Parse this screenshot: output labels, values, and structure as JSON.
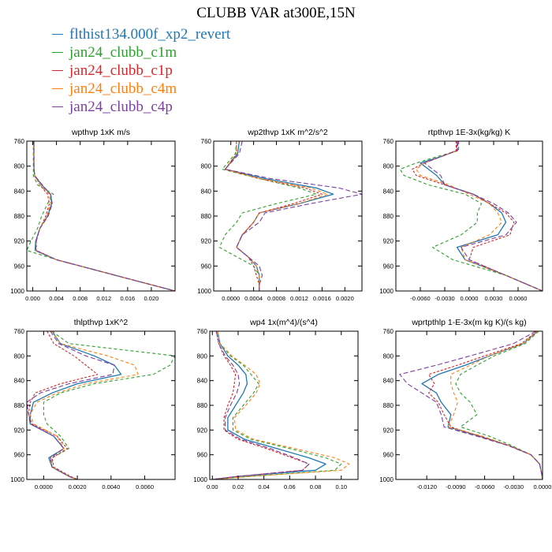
{
  "title": "CLUBB VAR at300E,15N",
  "legend": [
    {
      "name": "flthist134.000f_xp2_revert",
      "color": "#1f77b4"
    },
    {
      "name": "jan24_clubb_c1m",
      "color": "#2ca02c"
    },
    {
      "name": "jan24_clubb_c1p",
      "color": "#d62728"
    },
    {
      "name": "jan24_clubb_c4m",
      "color": "#ff7f0e"
    },
    {
      "name": "jan24_clubb_c4p",
      "color": "#7b3f9e"
    }
  ],
  "chart_data": [
    {
      "type": "line",
      "title": "wpthvp  1xK m/s",
      "xlim": [
        -0.001,
        0.024
      ],
      "xticks": [
        "0.000",
        "0.004",
        "0.008",
        "0.012",
        "0.016",
        "0.020"
      ],
      "xtick_values": [
        0,
        0.004,
        0.008,
        0.012,
        0.016,
        0.02
      ],
      "ylim": [
        760,
        1000
      ],
      "yticks": [
        760,
        800,
        840,
        880,
        920,
        960,
        1000
      ],
      "y": [
        760,
        780,
        800,
        815,
        830,
        845,
        860,
        880,
        900,
        920,
        935,
        950,
        965,
        980,
        1000
      ],
      "series": [
        {
          "values": [
            0.0002,
            0.0002,
            0.0002,
            0.0003,
            0.0015,
            0.003,
            0.0032,
            0.0025,
            0.0012,
            0.0005,
            0.0004,
            0.004,
            0.01,
            0.016,
            0.024
          ]
        },
        {
          "values": [
            0.0001,
            0.0001,
            0.0001,
            0.0001,
            0.0008,
            0.0035,
            0.0025,
            0.0015,
            0.0008,
            -0.0003,
            -0.001,
            0.004,
            0.01,
            0.016,
            0.024
          ]
        },
        {
          "values": [
            0.0002,
            0.0002,
            0.0002,
            0.0003,
            0.0012,
            0.0025,
            0.0028,
            0.0022,
            0.0012,
            0.0006,
            0.0006,
            0.004,
            0.01,
            0.016,
            0.024
          ]
        },
        {
          "values": [
            0.0002,
            0.0002,
            0.0002,
            0.0003,
            0.0012,
            0.0028,
            0.003,
            0.0024,
            0.0012,
            0.0006,
            0.0005,
            0.004,
            0.01,
            0.016,
            0.024
          ]
        },
        {
          "values": [
            0.0002,
            0.0002,
            0.0002,
            0.0003,
            0.0016,
            0.003,
            0.0033,
            0.0026,
            0.0012,
            0.0006,
            0.0005,
            0.004,
            0.01,
            0.016,
            0.024
          ]
        }
      ]
    },
    {
      "type": "line",
      "title": "wp2thvp  1xK m^2/s^2",
      "xlim": [
        -0.0003,
        0.0023
      ],
      "xticks": [
        "0.0000",
        "0.0004",
        "0.0008",
        "0.0012",
        "0.0016",
        "0.0020"
      ],
      "xtick_values": [
        0,
        0.0004,
        0.0008,
        0.0012,
        0.0016,
        0.002
      ],
      "ylim": [
        760,
        1000
      ],
      "yticks": [
        760,
        800,
        840,
        880,
        920,
        960,
        1000
      ],
      "y": [
        760,
        780,
        805,
        820,
        835,
        845,
        860,
        875,
        890,
        910,
        930,
        945,
        960,
        975,
        990,
        1000
      ],
      "series": [
        {
          "values": [
            0.00015,
            0.00012,
            -0.0001,
            0.0006,
            0.0015,
            0.0018,
            0.0012,
            0.0005,
            0.0004,
            0.0002,
            0.0001,
            0.0003,
            0.00045,
            0.0005,
            0.0005,
            0.0005
          ]
        },
        {
          "values": [
            0.0001,
            8e-05,
            -0.00015,
            0.0005,
            0.0012,
            0.0015,
            0.0008,
            0.0002,
            0.0001,
            -0.0001,
            -0.0002,
            0.0001,
            0.0004,
            0.0005,
            0.0005,
            0.0005
          ]
        },
        {
          "values": [
            0.0001,
            0.0001,
            -0.0001,
            0.0005,
            0.0013,
            0.0016,
            0.0011,
            0.0005,
            0.0004,
            0.0002,
            0.0001,
            0.0003,
            0.0004,
            0.00045,
            0.0005,
            0.0005
          ]
        },
        {
          "values": [
            0.0001,
            0.0001,
            -0.0001,
            0.0005,
            0.0014,
            0.0017,
            0.0012,
            0.0005,
            0.0004,
            0.0002,
            0.0001,
            0.0003,
            0.00045,
            0.0005,
            0.0005,
            0.0005
          ]
        },
        {
          "values": [
            0.0002,
            0.00015,
            -0.0001,
            0.0007,
            0.0019,
            0.0023,
            0.0014,
            0.0006,
            0.0005,
            0.0002,
            0.0001,
            0.0003,
            0.0005,
            0.00055,
            0.0005,
            0.0005
          ]
        }
      ]
    },
    {
      "type": "line",
      "title": "rtpthvp   1E-3x(kg/kg) K",
      "xlim": [
        -0.009,
        0.009
      ],
      "xticks": [
        "-0.0060",
        "-0.0030",
        "0.0000",
        "0.0030",
        "0.0060"
      ],
      "xtick_values": [
        -0.006,
        -0.003,
        0,
        0.003,
        0.006
      ],
      "ylim": [
        760,
        1000
      ],
      "yticks": [
        760,
        800,
        840,
        880,
        920,
        960,
        1000
      ],
      "y": [
        760,
        775,
        785,
        795,
        805,
        815,
        830,
        845,
        860,
        875,
        890,
        910,
        930,
        950,
        975,
        1000
      ],
      "series": [
        {
          "values": [
            -0.0015,
            -0.0015,
            -0.0035,
            -0.006,
            -0.005,
            -0.004,
            -0.003,
            0.0005,
            0.0025,
            0.004,
            0.0045,
            0.0035,
            -0.0015,
            -0.0005,
            0.0045,
            0.009
          ]
        },
        {
          "values": [
            -0.0013,
            -0.0013,
            -0.004,
            -0.0065,
            -0.0085,
            -0.008,
            -0.005,
            -0.0005,
            0.0015,
            0.001,
            0.001,
            -0.001,
            -0.0045,
            -0.002,
            0.0045,
            0.009
          ]
        },
        {
          "values": [
            -0.0016,
            -0.0016,
            -0.0035,
            -0.0055,
            -0.007,
            -0.0065,
            -0.003,
            0.0005,
            0.0025,
            0.0045,
            0.0055,
            0.005,
            0.0005,
            0.0,
            0.0045,
            0.009
          ]
        },
        {
          "values": [
            -0.0015,
            -0.0015,
            -0.0035,
            -0.0055,
            -0.0065,
            -0.006,
            -0.0025,
            0.0,
            0.0025,
            0.0035,
            0.004,
            0.0025,
            -0.001,
            -0.0005,
            0.0045,
            0.009
          ]
        },
        {
          "values": [
            -0.0014,
            -0.0014,
            -0.0035,
            -0.0055,
            -0.0045,
            -0.0035,
            -0.003,
            0.0005,
            0.003,
            0.0048,
            0.0058,
            0.0045,
            -0.001,
            0.0,
            0.0045,
            0.009
          ]
        }
      ]
    },
    {
      "type": "line",
      "title": "thlpthvp   1xK^2",
      "xlim": [
        -0.001,
        0.0078
      ],
      "xticks": [
        "0.0000",
        "0.0020",
        "0.0040",
        "0.0060"
      ],
      "xtick_values": [
        0,
        0.002,
        0.004,
        0.006
      ],
      "ylim": [
        760,
        1000
      ],
      "yticks": [
        760,
        800,
        840,
        880,
        920,
        960,
        1000
      ],
      "y": [
        760,
        780,
        800,
        815,
        830,
        845,
        860,
        875,
        895,
        910,
        930,
        950,
        965,
        980,
        995,
        1000
      ],
      "series": [
        {
          "values": [
            0.0005,
            0.001,
            0.003,
            0.0042,
            0.0046,
            0.002,
            0.0005,
            -0.0006,
            -0.0008,
            -0.0008,
            0.0006,
            0.0012,
            0.0003,
            0.0005,
            0.0015,
            0.002
          ]
        },
        {
          "values": [
            0.0005,
            0.0015,
            0.0078,
            0.0075,
            0.0065,
            0.003,
            0.001,
            0.0,
            0.0,
            0.0002,
            0.001,
            0.0015,
            0.0005,
            0.0005,
            0.0015,
            0.002
          ]
        },
        {
          "values": [
            0.0002,
            0.0006,
            0.0018,
            0.0025,
            0.0032,
            0.001,
            -0.0005,
            -0.0008,
            -0.0009,
            -0.0007,
            0.0008,
            0.0014,
            0.0005,
            0.0006,
            0.0016,
            0.002
          ]
        },
        {
          "values": [
            0.0005,
            0.001,
            0.0038,
            0.0054,
            0.0056,
            0.0025,
            0.0008,
            -0.0004,
            -0.0008,
            -0.0006,
            0.0008,
            0.0012,
            0.0004,
            0.0005,
            0.0015,
            0.002
          ]
        },
        {
          "values": [
            0.0004,
            0.0009,
            0.0025,
            0.0042,
            0.0041,
            0.0015,
            -0.0002,
            -0.001,
            -0.0009,
            -0.0008,
            0.0006,
            0.0012,
            0.0004,
            0.0005,
            0.0015,
            0.002
          ]
        }
      ]
    },
    {
      "type": "line",
      "title": "wp4   1x(m^4)/(s^4)",
      "xlim": [
        -0.002,
        0.113
      ],
      "xticks": [
        "0.00",
        "0.02",
        "0.04",
        "0.06",
        "0.08",
        "0.10"
      ],
      "xtick_values": [
        0,
        0.02,
        0.04,
        0.06,
        0.08,
        0.1
      ],
      "ylim": [
        760,
        1000
      ],
      "yticks": [
        760,
        800,
        840,
        880,
        920,
        960,
        1000
      ],
      "y": [
        760,
        780,
        800,
        815,
        830,
        845,
        860,
        880,
        900,
        920,
        935,
        950,
        965,
        975,
        985,
        995,
        1000
      ],
      "series": [
        {
          "values": [
            0.004,
            0.006,
            0.012,
            0.02,
            0.026,
            0.027,
            0.024,
            0.018,
            0.012,
            0.012,
            0.025,
            0.05,
            0.075,
            0.088,
            0.08,
            0.02,
            0.0
          ]
        },
        {
          "values": [
            0.004,
            0.006,
            0.014,
            0.024,
            0.03,
            0.036,
            0.032,
            0.024,
            0.016,
            0.016,
            0.03,
            0.06,
            0.088,
            0.1,
            0.095,
            0.03,
            0.0
          ]
        },
        {
          "values": [
            0.003,
            0.005,
            0.009,
            0.014,
            0.018,
            0.017,
            0.016,
            0.012,
            0.009,
            0.009,
            0.02,
            0.042,
            0.062,
            0.075,
            0.07,
            0.02,
            0.0
          ]
        },
        {
          "values": [
            0.004,
            0.006,
            0.015,
            0.025,
            0.034,
            0.037,
            0.034,
            0.026,
            0.017,
            0.018,
            0.032,
            0.064,
            0.095,
            0.106,
            0.1,
            0.03,
            0.0
          ]
        },
        {
          "values": [
            0.003,
            0.005,
            0.01,
            0.016,
            0.02,
            0.021,
            0.019,
            0.014,
            0.01,
            0.01,
            0.022,
            0.045,
            0.064,
            0.075,
            0.07,
            0.02,
            0.0
          ]
        }
      ]
    },
    {
      "type": "line",
      "title": "wprtpthlp   1-E-3x(m kg K)/(s kg)",
      "xlim": [
        -0.0152,
        0.0
      ],
      "xticks": [
        "-0.0120",
        "-0.0090",
        "-0.0060",
        "-0.0030",
        "0.0000"
      ],
      "xtick_values": [
        -0.012,
        -0.009,
        -0.006,
        -0.003,
        0
      ],
      "ylim": [
        760,
        1000
      ],
      "yticks": [
        760,
        800,
        840,
        880,
        920,
        960,
        1000
      ],
      "y": [
        760,
        780,
        800,
        815,
        830,
        845,
        860,
        875,
        895,
        915,
        930,
        945,
        960,
        975,
        990,
        1000
      ],
      "series": [
        {
          "values": [
            -0.0005,
            -0.002,
            -0.0055,
            -0.008,
            -0.0108,
            -0.0125,
            -0.011,
            -0.0105,
            -0.0095,
            -0.0098,
            -0.0065,
            -0.0035,
            -0.0012,
            -0.0003,
            -0.0001,
            0.0
          ]
        },
        {
          "values": [
            -0.0004,
            -0.0018,
            -0.005,
            -0.0068,
            -0.0085,
            -0.009,
            -0.0085,
            -0.0075,
            -0.0068,
            -0.0085,
            -0.0055,
            -0.0032,
            -0.0012,
            -0.0003,
            -0.0001,
            0.0
          ]
        },
        {
          "values": [
            -0.0006,
            -0.0022,
            -0.006,
            -0.0088,
            -0.0118,
            -0.0112,
            -0.0118,
            -0.0108,
            -0.0102,
            -0.0095,
            -0.0065,
            -0.0035,
            -0.0012,
            -0.0003,
            -0.0001,
            0.0
          ]
        },
        {
          "values": [
            -0.0005,
            -0.002,
            -0.0055,
            -0.0075,
            -0.0095,
            -0.0095,
            -0.0092,
            -0.0088,
            -0.0092,
            -0.0098,
            -0.0062,
            -0.0035,
            -0.0012,
            -0.0003,
            -0.0001,
            0.0
          ]
        },
        {
          "values": [
            -0.0007,
            -0.003,
            -0.0075,
            -0.011,
            -0.0148,
            -0.014,
            -0.0125,
            -0.011,
            -0.0105,
            -0.0102,
            -0.0068,
            -0.0036,
            -0.0012,
            -0.0003,
            -0.0001,
            0.0
          ]
        }
      ]
    }
  ]
}
